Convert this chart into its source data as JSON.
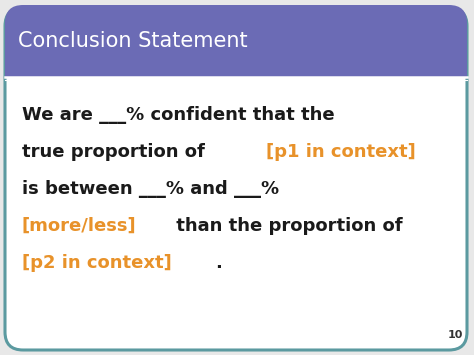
{
  "title": "Conclusion Statement",
  "title_color": "#ffffff",
  "title_bg_color": "#6b6bb5",
  "title_font_size": 15,
  "body_font_size": 13,
  "black_color": "#1a1a1a",
  "orange_color": "#e8922a",
  "slide_bg": "#ffffff",
  "outer_bg": "#e8e8e8",
  "border_color": "#5b9aa0",
  "page_number": "10",
  "title_bar_height": 72,
  "line1_parts": [
    {
      "text": "We are ___% confident that the",
      "color": "#1a1a1a"
    }
  ],
  "line2_parts": [
    {
      "text": "true proportion of ",
      "color": "#1a1a1a"
    },
    {
      "text": "[p1 in context]",
      "color": "#e8922a"
    }
  ],
  "line3_parts": [
    {
      "text": "is between ___% and ___%",
      "color": "#1a1a1a"
    }
  ],
  "line4_parts": [
    {
      "text": "[more/less]",
      "color": "#e8922a"
    },
    {
      "text": " than the proportion of",
      "color": "#1a1a1a"
    }
  ],
  "line5_parts": [
    {
      "text": "[p2 in context]",
      "color": "#e8922a"
    },
    {
      "text": ".",
      "color": "#1a1a1a"
    }
  ]
}
